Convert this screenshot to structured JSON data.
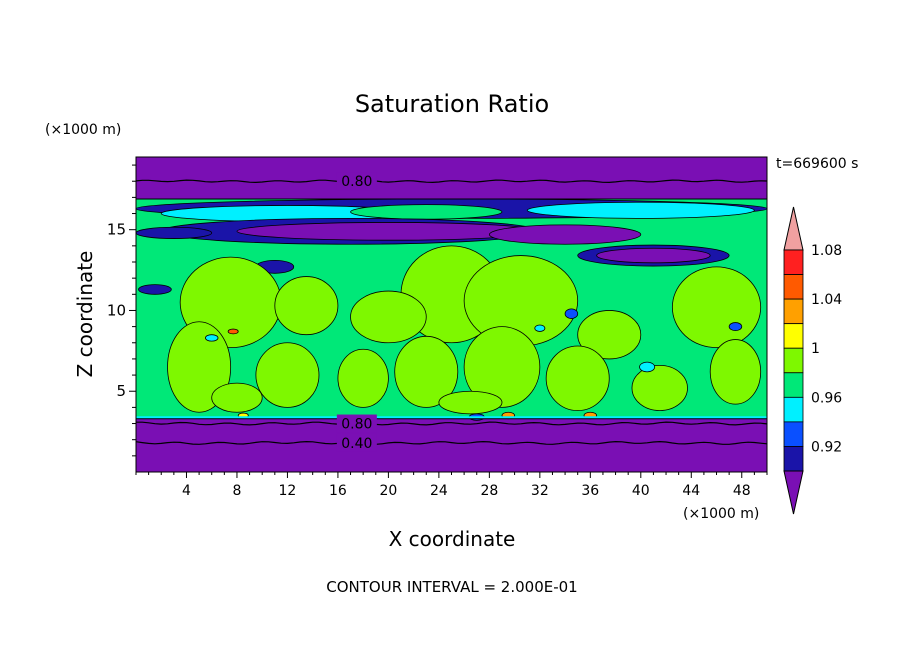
{
  "chart_data": {
    "type": "heatmap",
    "title": "Saturation Ratio",
    "xlabel": "X coordinate",
    "ylabel": "Z coordinate",
    "x_unit": "(×1000 m)",
    "y_unit": "(×1000 m)",
    "time_label": "t=669600 s",
    "footer": "CONTOUR INTERVAL = 2.000E-01",
    "xlim": [
      0,
      50
    ],
    "ylim": [
      0,
      19.5
    ],
    "x_ticks": [
      4,
      8,
      12,
      16,
      20,
      24,
      28,
      32,
      36,
      40,
      44,
      48
    ],
    "y_ticks": [
      5,
      10,
      15
    ],
    "colorbar": {
      "levels": [
        0.92,
        0.96,
        1,
        1.04,
        1.08
      ],
      "colors": [
        "#7a0fb4",
        "#1a14a8",
        "#0a50ff",
        "#00f0ff",
        "#00e878",
        "#7ef800",
        "#ffff00",
        "#ffa000",
        "#ff5a00",
        "#ff2020",
        "#f0a0a0"
      ]
    },
    "contour_labels": [
      {
        "text": "0.80",
        "x": 17.5,
        "y": 18.0
      },
      {
        "text": "0.80",
        "x": 17.5,
        "y": 3.0
      },
      {
        "text": "0.40",
        "x": 17.5,
        "y": 1.8
      }
    ]
  }
}
